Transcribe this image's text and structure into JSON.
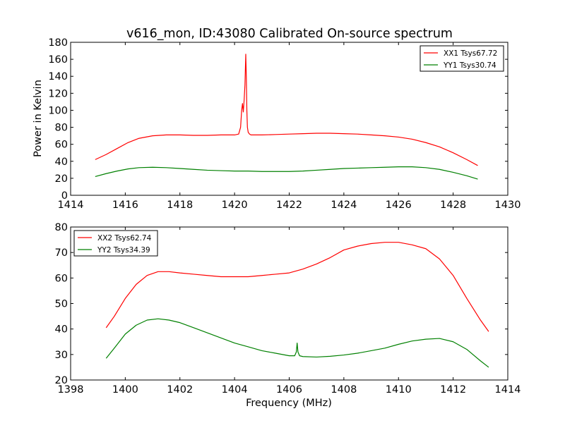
{
  "figure": {
    "title": "v616_mon, ID:43080 Calibrated On-source spectrum",
    "ylabel": "Power in Kelvin",
    "xlabel": "Frequency (MHz)"
  },
  "chart_data": [
    {
      "type": "line",
      "title": "v616_mon, ID:43080 Calibrated On-source spectrum",
      "xlabel": "",
      "ylabel": "Power in Kelvin",
      "xlim": [
        1414,
        1430
      ],
      "ylim": [
        0,
        180
      ],
      "xticks": [
        "1414",
        "1416",
        "1418",
        "1420",
        "1422",
        "1424",
        "1426",
        "1428",
        "1430"
      ],
      "yticks": [
        "0",
        "20",
        "40",
        "60",
        "80",
        "100",
        "120",
        "140",
        "160",
        "180"
      ],
      "grid": false,
      "legend": "top-right",
      "series": [
        {
          "name": "XX1 Tsys67.72",
          "color": "#ff0000",
          "x": [
            1414.9,
            1415.3,
            1415.7,
            1416.1,
            1416.5,
            1417.0,
            1417.5,
            1418.0,
            1418.5,
            1419.0,
            1419.5,
            1420.0,
            1420.15,
            1420.22,
            1420.26,
            1420.29,
            1420.32,
            1420.35,
            1420.38,
            1420.41,
            1420.43,
            1420.45,
            1420.47,
            1420.5,
            1420.55,
            1420.6,
            1420.7,
            1421.0,
            1421.5,
            1422.0,
            1422.5,
            1423.0,
            1423.5,
            1424.0,
            1424.5,
            1425.0,
            1425.5,
            1426.0,
            1426.5,
            1427.0,
            1427.5,
            1428.0,
            1428.5,
            1428.9
          ],
          "y": [
            42,
            48,
            55,
            62,
            67,
            70,
            71,
            71,
            70.5,
            70.5,
            71,
            71,
            72,
            80,
            100,
            108,
            98,
            112,
            130,
            166,
            140,
            100,
            80,
            74,
            72,
            71,
            71,
            71,
            71.5,
            72,
            72.5,
            73,
            73,
            72.5,
            72,
            71,
            70,
            68.5,
            66,
            62,
            57,
            50,
            42,
            35
          ]
        },
        {
          "name": "YY1 Tsys30.74",
          "color": "#008000",
          "x": [
            1414.9,
            1415.3,
            1415.7,
            1416.1,
            1416.5,
            1417.0,
            1417.5,
            1418.0,
            1418.5,
            1419.0,
            1419.5,
            1420.0,
            1420.5,
            1421.0,
            1421.5,
            1422.0,
            1422.5,
            1423.0,
            1423.5,
            1424.0,
            1424.5,
            1425.0,
            1425.5,
            1426.0,
            1426.5,
            1427.0,
            1427.5,
            1428.0,
            1428.5,
            1428.9
          ],
          "y": [
            22,
            25.5,
            28.5,
            31,
            32.5,
            33,
            32.5,
            31.5,
            30.5,
            29.5,
            29,
            28.5,
            28.5,
            28,
            28,
            28,
            28.5,
            29.5,
            30.5,
            31.5,
            32,
            32.5,
            33,
            33.5,
            33.5,
            32.5,
            30.5,
            27,
            23,
            19
          ]
        }
      ]
    },
    {
      "type": "line",
      "title": "",
      "xlabel": "Frequency (MHz)",
      "ylabel": "",
      "xlim": [
        1398,
        1414
      ],
      "ylim": [
        20,
        80
      ],
      "xticks": [
        "1398",
        "1400",
        "1402",
        "1404",
        "1406",
        "1408",
        "1410",
        "1412",
        "1414"
      ],
      "yticks": [
        "20",
        "30",
        "40",
        "50",
        "60",
        "70",
        "80"
      ],
      "grid": false,
      "legend": "top-left",
      "series": [
        {
          "name": "XX2 Tsys62.74",
          "color": "#ff0000",
          "x": [
            1399.3,
            1399.6,
            1400.0,
            1400.4,
            1400.8,
            1401.2,
            1401.6,
            1402.0,
            1402.5,
            1403.0,
            1403.5,
            1404.0,
            1404.5,
            1405.0,
            1405.5,
            1406.0,
            1406.5,
            1407.0,
            1407.5,
            1408.0,
            1408.5,
            1409.0,
            1409.5,
            1410.0,
            1410.5,
            1411.0,
            1411.5,
            1412.0,
            1412.5,
            1413.0,
            1413.3
          ],
          "y": [
            40.5,
            45,
            52,
            57.5,
            61,
            62.5,
            62.5,
            62,
            61.5,
            61,
            60.5,
            60.5,
            60.5,
            61,
            61.5,
            62,
            63.5,
            65.5,
            68,
            71,
            72.5,
            73.5,
            74,
            74,
            73,
            71.5,
            67.5,
            61,
            52,
            43.5,
            39
          ]
        },
        {
          "name": "YY2 Tsys34.39",
          "color": "#008000",
          "x": [
            1399.3,
            1399.6,
            1400.0,
            1400.4,
            1400.8,
            1401.2,
            1401.6,
            1402.0,
            1402.5,
            1403.0,
            1403.5,
            1404.0,
            1404.5,
            1405.0,
            1405.5,
            1406.0,
            1406.2,
            1406.26,
            1406.29,
            1406.32,
            1406.38,
            1406.5,
            1407.0,
            1407.5,
            1408.0,
            1408.5,
            1409.0,
            1409.5,
            1410.0,
            1410.5,
            1411.0,
            1411.5,
            1412.0,
            1412.5,
            1413.0,
            1413.3
          ],
          "y": [
            28.5,
            32.5,
            38,
            41.5,
            43.5,
            44,
            43.5,
            42.5,
            40.5,
            38.5,
            36.5,
            34.5,
            33,
            31.5,
            30.5,
            29.5,
            29.5,
            31,
            34.5,
            31,
            29.5,
            29.2,
            29,
            29.3,
            29.8,
            30.5,
            31.5,
            32.5,
            34,
            35.3,
            36,
            36.3,
            35,
            32,
            27.5,
            25
          ]
        }
      ]
    }
  ]
}
